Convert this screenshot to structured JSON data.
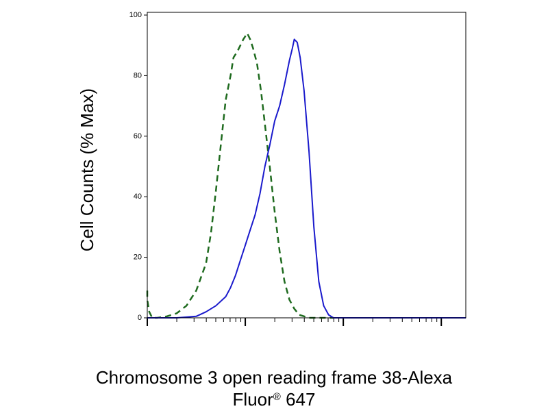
{
  "chart_data": {
    "type": "line",
    "title": "",
    "ylabel": "Cell Counts (% Max)",
    "xlabel_line1": "Chromosome 3 open reading frame 38-Alexa",
    "xlabel_line2_prefix": "Fluor",
    "xlabel_line2_sup": "®",
    "xlabel_line2_suffix": " 647",
    "y_ticks": [
      "0",
      "20",
      "40",
      "60",
      "80",
      "100"
    ],
    "y_tick_values": [
      0,
      20,
      40,
      60,
      80,
      100
    ],
    "ylim": [
      0,
      100
    ],
    "x_scale": "log",
    "xlim_decades": [
      0,
      3.25
    ],
    "x_major_decades": [
      0,
      1,
      2,
      3
    ],
    "grid": false,
    "legend": "none",
    "series": [
      {
        "style": "dashed",
        "color": "#1f6b1f",
        "x": [
          -0.02,
          0.0,
          0.02,
          0.05,
          0.1,
          0.2,
          0.3,
          0.4,
          0.5,
          0.6,
          0.65,
          0.7,
          0.75,
          0.8,
          0.85,
          0.88,
          0.92,
          0.95,
          0.98,
          1.0,
          1.02,
          1.05,
          1.08,
          1.12,
          1.16,
          1.2,
          1.25,
          1.3,
          1.35,
          1.4,
          1.45,
          1.5,
          1.55,
          1.6,
          1.65,
          1.7,
          1.8,
          1.9
        ],
        "y": [
          9,
          6,
          2,
          0,
          0,
          0.5,
          1.5,
          4,
          9,
          18,
          28,
          42,
          57,
          72,
          80,
          86,
          88,
          90,
          92,
          93,
          94,
          92,
          89,
          84,
          75,
          64,
          50,
          35,
          22,
          12,
          6,
          3,
          1,
          0.5,
          0,
          0,
          0,
          0
        ]
      },
      {
        "style": "solid",
        "color": "#1a1acc",
        "x": [
          0.0,
          0.3,
          0.5,
          0.6,
          0.7,
          0.8,
          0.85,
          0.9,
          0.95,
          1.0,
          1.05,
          1.1,
          1.15,
          1.2,
          1.25,
          1.3,
          1.35,
          1.4,
          1.45,
          1.48,
          1.5,
          1.53,
          1.56,
          1.6,
          1.65,
          1.7,
          1.75,
          1.8,
          1.85,
          1.9,
          2.0,
          2.2,
          2.5,
          2.8,
          3.0,
          3.25
        ],
        "y": [
          0,
          0,
          0.5,
          2,
          4,
          7,
          10,
          14,
          19,
          24,
          29,
          34,
          41,
          50,
          57,
          65,
          70,
          77,
          85,
          89,
          92,
          91,
          86,
          75,
          55,
          30,
          12,
          4,
          1,
          0,
          0,
          0,
          0,
          0,
          0,
          0
        ]
      }
    ]
  }
}
